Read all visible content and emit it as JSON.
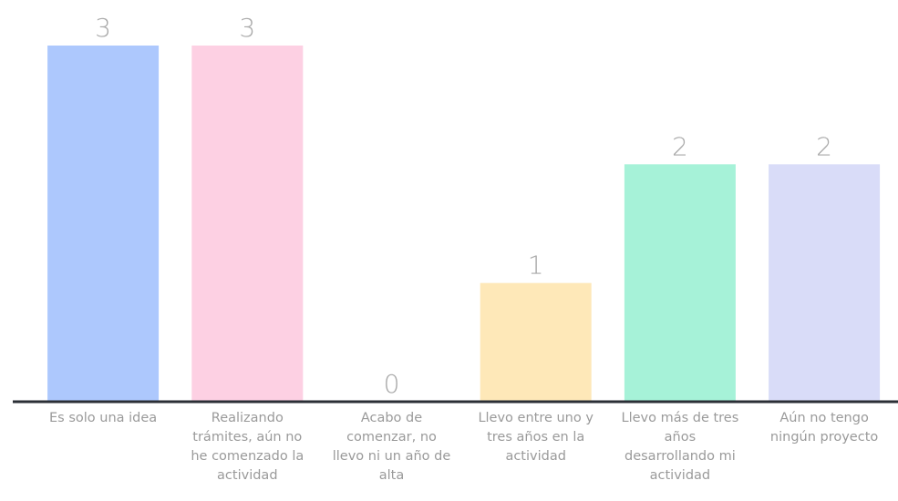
{
  "chart_data": {
    "type": "bar",
    "categories": [
      "Es solo una idea",
      "Realizando trámites, aún no he comenzado la actividad",
      "Acabo de comenzar, no llevo ni un año de alta",
      "Llevo entre uno y tres años en la actividad",
      "Llevo más de tres años desarrollando mi actividad",
      "Aún no tengo ningún proyecto"
    ],
    "values": [
      3,
      3,
      0,
      1,
      2,
      2
    ],
    "colors": [
      "#adc8fd",
      "#fdd0e3",
      null,
      "#fee8b8",
      "#a6f2d8",
      "#d9dcf8"
    ]
  }
}
